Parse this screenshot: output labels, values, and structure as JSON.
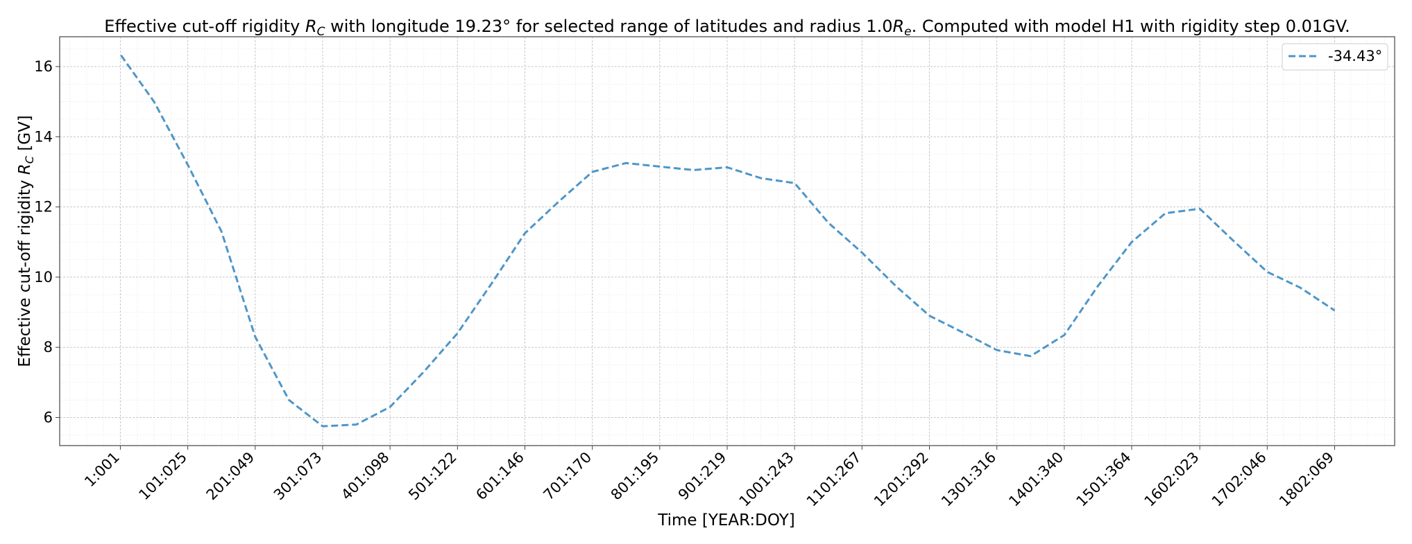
{
  "chart_data": {
    "type": "line",
    "title": {
      "pre": "Effective cut-off rigidity ",
      "sym": "R",
      "sub": "C",
      "mid": " with longitude 19.23° for selected range of latitudes and radius 1.0",
      "sym2": "R",
      "sub2": "e",
      "post": ". Computed with model H1 with rigidity step 0.01GV."
    },
    "xlabel": "Time [YEAR:DOY]",
    "ylabel": {
      "pre": "Effective cut-off rigidity ",
      "sym": "R",
      "sub": "C",
      "post": " [GV]"
    },
    "xlim": [
      -90,
      1890
    ],
    "ylim": [
      5.2,
      16.85
    ],
    "x_ticks": [
      {
        "x": 0,
        "label": "1:001"
      },
      {
        "x": 100,
        "label": "101:025"
      },
      {
        "x": 200,
        "label": "201:049"
      },
      {
        "x": 300,
        "label": "301:073"
      },
      {
        "x": 400,
        "label": "401:098"
      },
      {
        "x": 500,
        "label": "501:122"
      },
      {
        "x": 600,
        "label": "601:146"
      },
      {
        "x": 700,
        "label": "701:170"
      },
      {
        "x": 800,
        "label": "801:195"
      },
      {
        "x": 900,
        "label": "901:219"
      },
      {
        "x": 1000,
        "label": "1001:243"
      },
      {
        "x": 1100,
        "label": "1101:267"
      },
      {
        "x": 1200,
        "label": "1201:292"
      },
      {
        "x": 1300,
        "label": "1301:316"
      },
      {
        "x": 1400,
        "label": "1401:340"
      },
      {
        "x": 1500,
        "label": "1501:364"
      },
      {
        "x": 1601,
        "label": "1602:023"
      },
      {
        "x": 1701,
        "label": "1702:046"
      },
      {
        "x": 1801,
        "label": "1802:069"
      }
    ],
    "y_ticks": [
      6,
      8,
      10,
      12,
      14,
      16
    ],
    "grid": true,
    "minor_grid": true,
    "legend_position": "top-right",
    "series": [
      {
        "name": "-34.43°",
        "color": "#4e96c8",
        "linestyle": "dashed",
        "x": [
          1,
          50,
          100,
          150,
          200,
          250,
          300,
          350,
          400,
          450,
          500,
          550,
          600,
          650,
          700,
          750,
          800,
          850,
          900,
          950,
          1000,
          1050,
          1100,
          1150,
          1200,
          1250,
          1300,
          1350,
          1400,
          1450,
          1500,
          1550,
          1601,
          1650,
          1701,
          1750,
          1801
        ],
        "values": [
          16.32,
          15.0,
          13.2,
          11.3,
          8.3,
          6.5,
          5.75,
          5.8,
          6.3,
          7.3,
          8.4,
          9.8,
          11.25,
          12.15,
          13.0,
          13.25,
          13.15,
          13.05,
          13.13,
          12.82,
          12.68,
          11.55,
          10.7,
          9.75,
          8.9,
          8.42,
          7.92,
          7.75,
          8.35,
          9.75,
          11.0,
          11.82,
          11.95,
          11.05,
          10.15,
          9.7,
          9.05
        ]
      }
    ]
  }
}
